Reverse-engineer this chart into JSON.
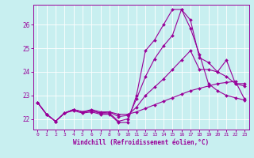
{
  "xlabel": "Windchill (Refroidissement éolien,°C)",
  "xlim": [
    -0.5,
    23.5
  ],
  "ylim": [
    21.55,
    26.85
  ],
  "xticks": [
    0,
    1,
    2,
    3,
    4,
    5,
    6,
    7,
    8,
    9,
    10,
    11,
    12,
    13,
    14,
    15,
    16,
    17,
    18,
    19,
    20,
    21,
    22,
    23
  ],
  "yticks": [
    22,
    23,
    24,
    25,
    26
  ],
  "bg_color": "#c8eff0",
  "line_color": "#990099",
  "grid_color": "#ffffff",
  "lines": [
    {
      "x": [
        0,
        1,
        2,
        3,
        4,
        5,
        6,
        7,
        8,
        9,
        10,
        11,
        12,
        13,
        14,
        15,
        16,
        17,
        18,
        19,
        20,
        21,
        22,
        23
      ],
      "y": [
        22.7,
        22.2,
        21.9,
        22.25,
        22.35,
        22.25,
        22.3,
        22.2,
        22.2,
        21.85,
        21.85,
        23.0,
        24.9,
        25.35,
        26.0,
        26.65,
        26.65,
        25.85,
        24.75,
        23.5,
        23.2,
        23.0,
        22.9,
        22.8
      ]
    },
    {
      "x": [
        0,
        1,
        2,
        3,
        4,
        5,
        6,
        7,
        8,
        9,
        10,
        11,
        12,
        13,
        14,
        15,
        16,
        17,
        18,
        19,
        20,
        21,
        22,
        23
      ],
      "y": [
        22.7,
        22.2,
        21.9,
        22.25,
        22.4,
        22.3,
        22.35,
        22.25,
        22.25,
        21.9,
        22.0,
        22.85,
        23.8,
        24.55,
        25.1,
        25.55,
        26.65,
        26.2,
        24.6,
        24.4,
        24.0,
        24.5,
        23.5,
        23.5
      ]
    },
    {
      "x": [
        0,
        1,
        2,
        3,
        4,
        5,
        6,
        7,
        8,
        9,
        10,
        11,
        12,
        13,
        14,
        15,
        16,
        17,
        18,
        19,
        20,
        21,
        22,
        23
      ],
      "y": [
        22.7,
        22.2,
        21.9,
        22.25,
        22.4,
        22.3,
        22.35,
        22.25,
        22.3,
        22.1,
        22.15,
        22.5,
        23.0,
        23.35,
        23.7,
        24.1,
        24.5,
        24.9,
        24.1,
        24.1,
        24.0,
        23.8,
        23.5,
        23.4
      ]
    },
    {
      "x": [
        0,
        1,
        2,
        3,
        4,
        5,
        6,
        7,
        8,
        9,
        10,
        11,
        12,
        13,
        14,
        15,
        16,
        17,
        18,
        19,
        20,
        21,
        22,
        23
      ],
      "y": [
        22.7,
        22.2,
        21.9,
        22.25,
        22.4,
        22.3,
        22.4,
        22.3,
        22.3,
        22.2,
        22.2,
        22.3,
        22.45,
        22.6,
        22.75,
        22.9,
        23.05,
        23.2,
        23.3,
        23.4,
        23.5,
        23.55,
        23.6,
        22.85
      ]
    }
  ]
}
